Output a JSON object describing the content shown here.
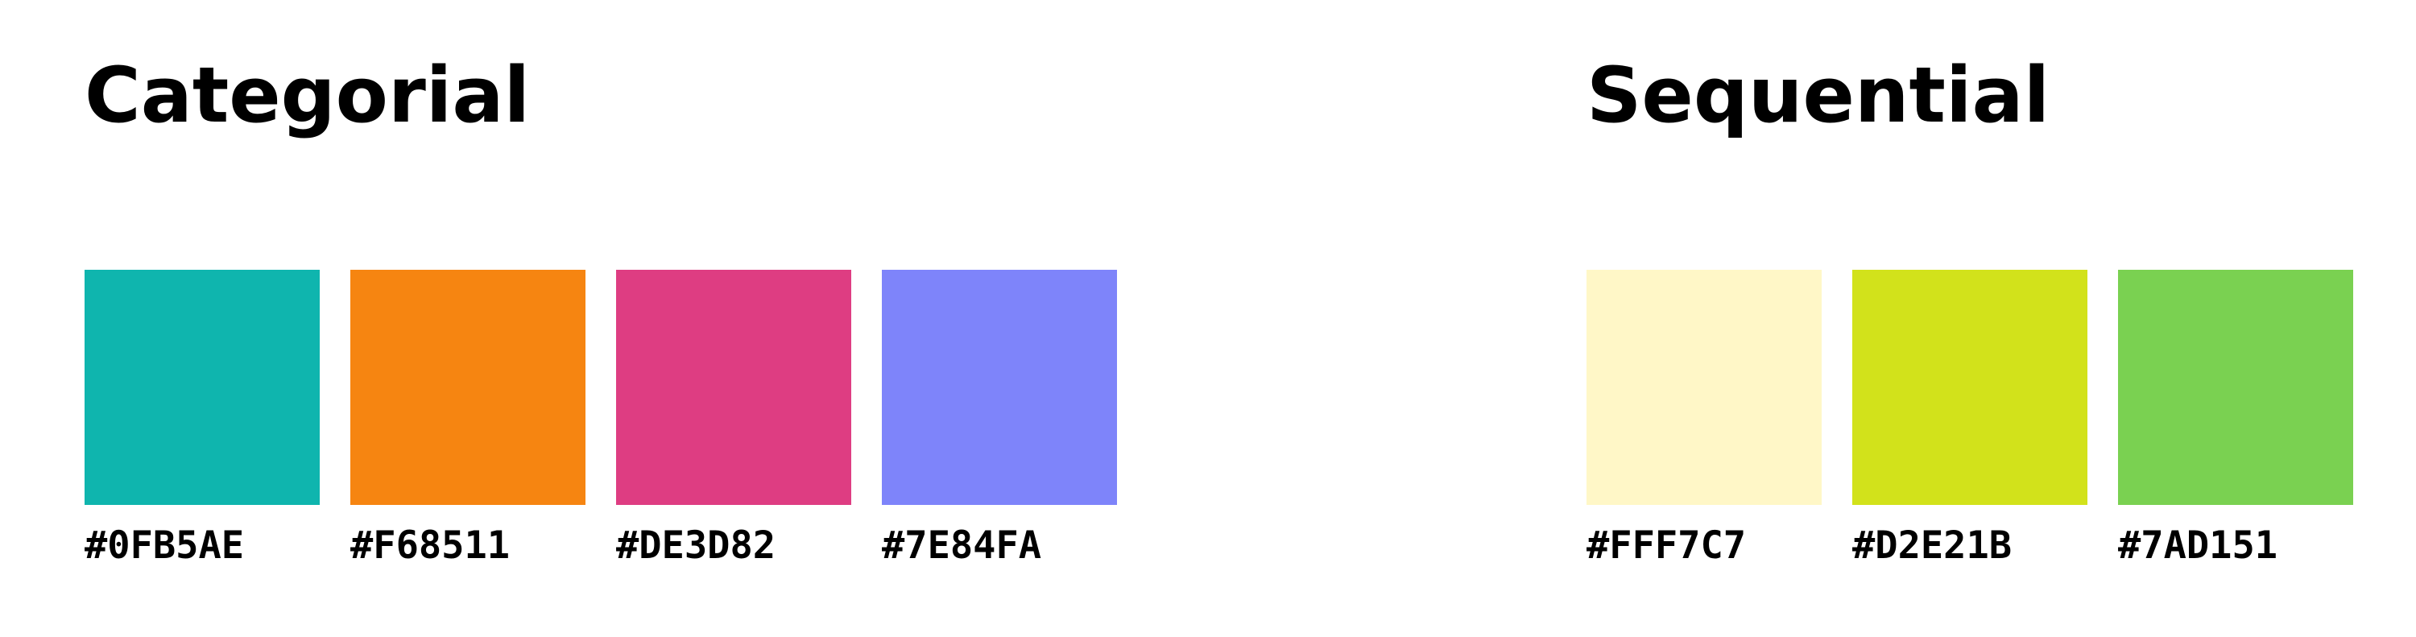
{
  "palettes": {
    "categorial": {
      "title": "Categorial",
      "swatches": [
        {
          "hex": "#0FB5AE",
          "color": "#0FB5AE"
        },
        {
          "hex": "#F68511",
          "color": "#F68511"
        },
        {
          "hex": "#DE3D82",
          "color": "#DE3D82"
        },
        {
          "hex": "#7E84FA",
          "color": "#7E84FA"
        }
      ]
    },
    "sequential": {
      "title": "Sequential",
      "swatches": [
        {
          "hex": "#FFF7C7",
          "color": "#FFF7C7"
        },
        {
          "hex": "#D2E21B",
          "color": "#D2E21B"
        },
        {
          "hex": "#7AD151",
          "color": "#7AD151"
        }
      ]
    }
  }
}
